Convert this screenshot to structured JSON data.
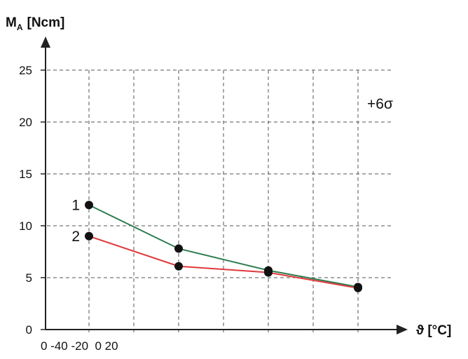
{
  "chart_data": {
    "type": "line",
    "title": "",
    "ylabel": {
      "main": "M",
      "sub": "A",
      "unit": "[Ncm]"
    },
    "xlabel": "ϑ [°C]",
    "y_ticks": [
      0,
      5,
      10,
      15,
      20,
      25
    ],
    "ylim": [
      0,
      25
    ],
    "x_tick_text": "0 -40 -20  0 20",
    "annotation": "+6σ",
    "grid": true,
    "x_positions": [
      1,
      2,
      3,
      4
    ],
    "series": [
      {
        "label": "1",
        "color": "#2e7d4f",
        "points": [
          [
            1,
            12
          ],
          [
            2,
            7.8
          ],
          [
            3,
            5.7
          ],
          [
            4,
            4.1
          ]
        ]
      },
      {
        "label": "2",
        "color": "#e0383b",
        "points": [
          [
            1,
            9
          ],
          [
            2,
            6.1
          ],
          [
            3,
            5.5
          ],
          [
            4,
            4.0
          ]
        ]
      }
    ]
  }
}
